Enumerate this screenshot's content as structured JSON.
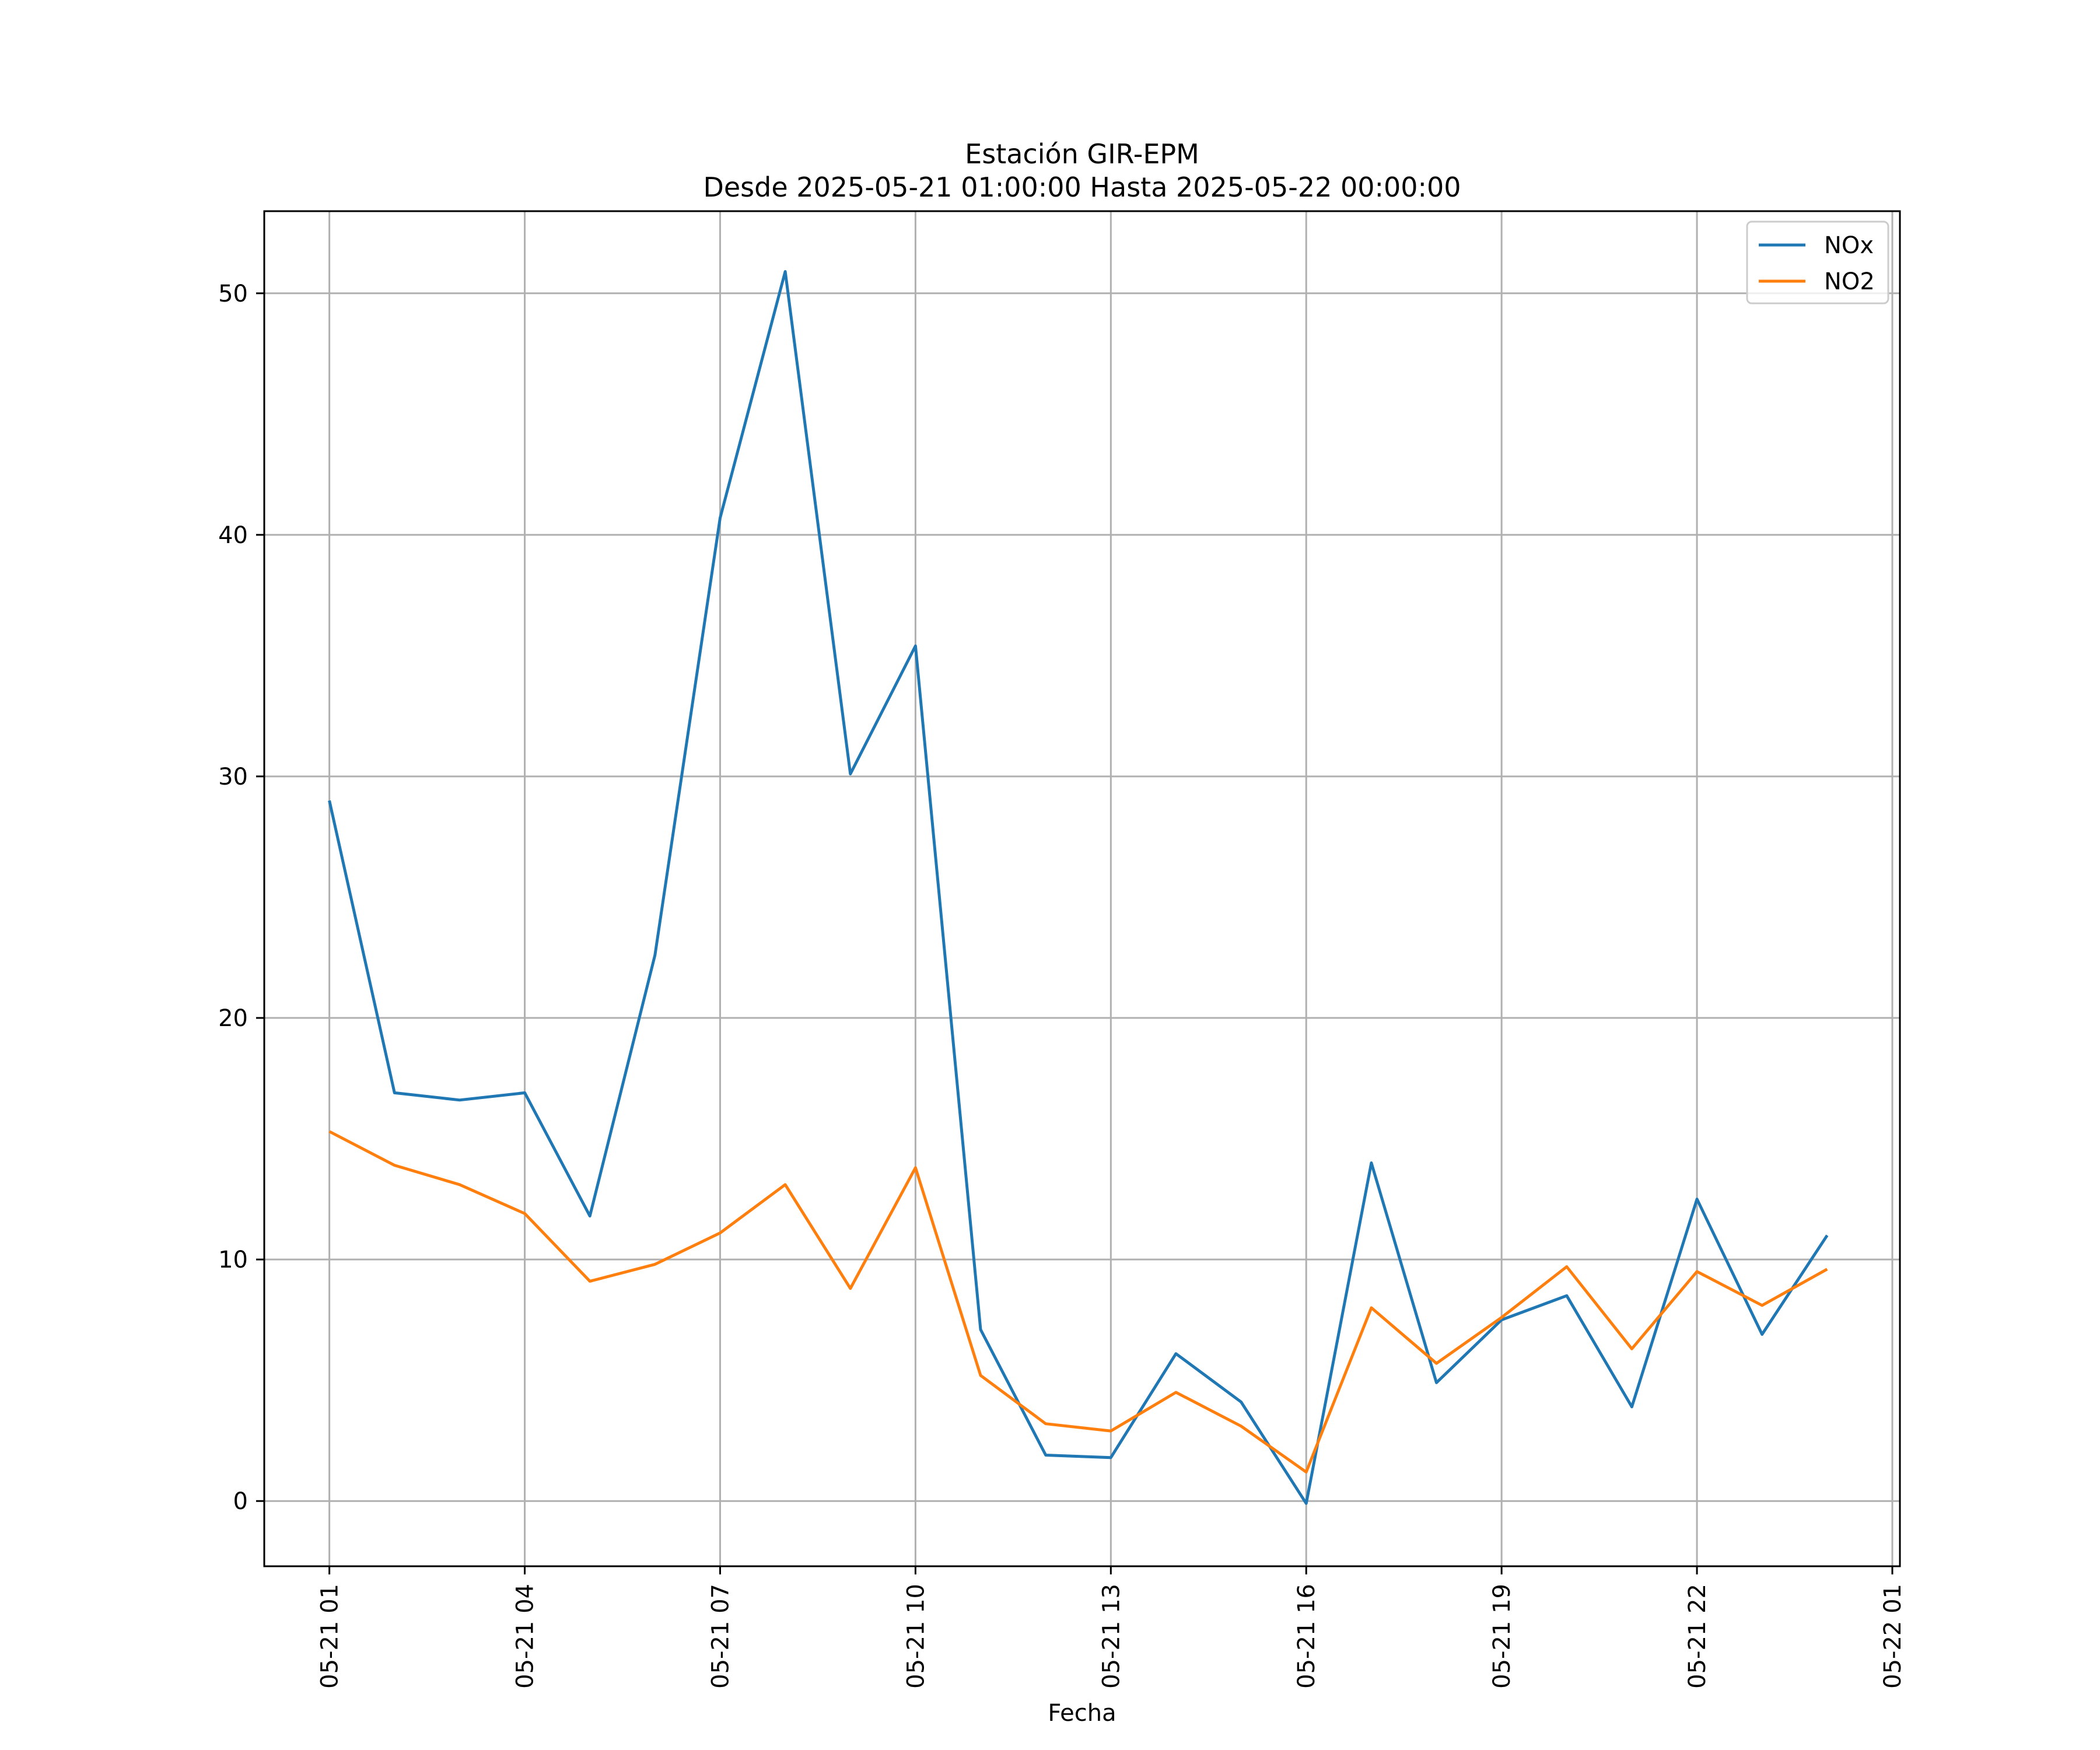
{
  "chart_data": {
    "type": "line",
    "title": "Estación GIR-EPM",
    "subtitle": "Desde 2025-05-21 01:00:00 Hasta 2025-05-22 00:00:00",
    "xlabel": "Fecha",
    "ylabel": "",
    "x": [
      "05-21 01",
      "05-21 02",
      "05-21 03",
      "05-21 04",
      "05-21 05",
      "05-21 06",
      "05-21 07",
      "05-21 08",
      "05-21 09",
      "05-21 10",
      "05-21 11",
      "05-21 12",
      "05-21 13",
      "05-21 14",
      "05-21 15",
      "05-21 16",
      "05-21 17",
      "05-21 18",
      "05-21 19",
      "05-21 20",
      "05-21 21",
      "05-21 22",
      "05-21 23",
      "05-22 00"
    ],
    "x_ticks": [
      "05-21 01",
      "05-21 04",
      "05-21 07",
      "05-21 10",
      "05-21 13",
      "05-21 16",
      "05-21 19",
      "05-21 22",
      "05-22 01"
    ],
    "x_range": [
      "05-21 00:00",
      "05-22 01:07"
    ],
    "y_ticks": [
      0,
      10,
      20,
      30,
      40,
      50
    ],
    "ylim": [
      -2.7,
      53.4
    ],
    "grid": true,
    "legend_position": "top-right",
    "series": [
      {
        "name": "NOx",
        "color": "#1f77b4",
        "values": [
          29.0,
          16.9,
          16.6,
          16.9,
          11.8,
          22.6,
          40.7,
          50.9,
          30.1,
          35.4,
          7.1,
          1.9,
          1.8,
          6.1,
          4.1,
          -0.1,
          14.0,
          4.9,
          7.5,
          8.5,
          3.9,
          12.5,
          6.9,
          11.0
        ]
      },
      {
        "name": "NO2",
        "color": "#ff7f0e",
        "values": [
          15.3,
          13.9,
          13.1,
          11.9,
          9.1,
          9.8,
          11.1,
          13.1,
          8.8,
          13.8,
          5.2,
          3.2,
          2.9,
          4.5,
          3.1,
          1.2,
          8.0,
          5.7,
          7.6,
          9.7,
          6.3,
          9.5,
          8.1,
          9.6
        ]
      }
    ]
  }
}
